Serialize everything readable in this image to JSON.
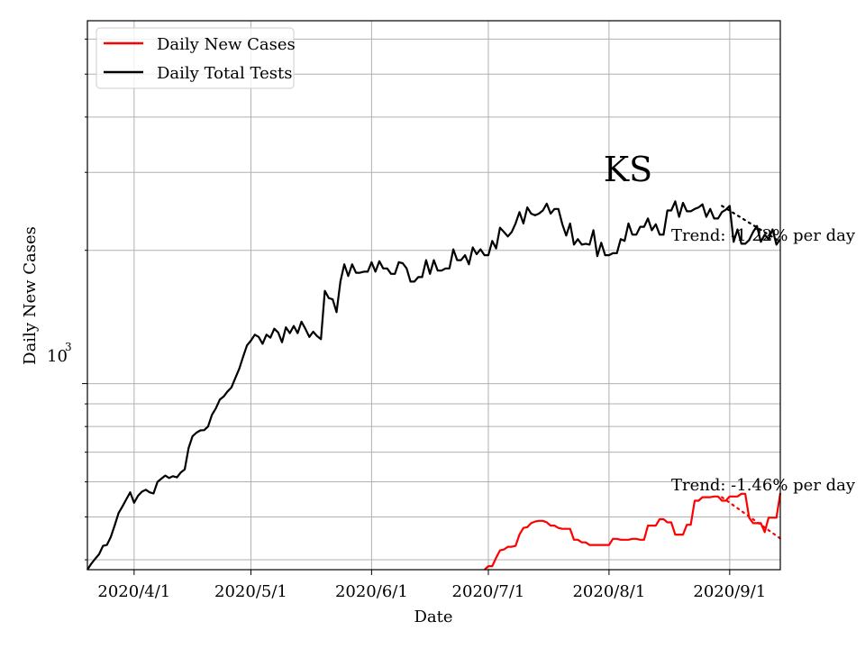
{
  "chart_data": {
    "type": "line",
    "state_label": "KS",
    "xlabel": "Date",
    "ylabel": "Daily New Cases",
    "y_scale": "log",
    "y_tick_labels": [
      {
        "value": 1000,
        "base": "10",
        "exp": "3"
      }
    ],
    "x_tick_labels": [
      "2020/4/1",
      "2020/5/1",
      "2020/6/1",
      "2020/7/1",
      "2020/8/1",
      "2020/9/1"
    ],
    "x_ticks": [
      "2020-04-01",
      "2020-05-01",
      "2020-06-01",
      "2020-07-01",
      "2020-08-01",
      "2020-09-01"
    ],
    "xlim": [
      "2020-03-20",
      "2020-09-14"
    ],
    "ylim": [
      380,
      6600
    ],
    "grid": true,
    "legend_position": "top-left",
    "legend": [
      "Daily New Cases",
      "Daily Total Tests"
    ],
    "colors": {
      "cases": "#ff0000",
      "tests": "#000000"
    },
    "annotations": [
      {
        "text": "Trend: -1.22% per day",
        "series": "Daily Total Tests"
      },
      {
        "text": "Trend: -1.46% per day",
        "series": "Daily New Cases"
      }
    ],
    "series": [
      {
        "name": "Daily Total Tests",
        "color": "#000000",
        "points": [
          [
            "2020-03-20",
            380
          ],
          [
            "2020-03-21",
            392
          ],
          [
            "2020-03-22",
            402
          ],
          [
            "2020-03-23",
            412
          ],
          [
            "2020-03-24",
            430
          ],
          [
            "2020-03-25",
            432
          ],
          [
            "2020-03-26",
            450
          ],
          [
            "2020-03-27",
            478
          ],
          [
            "2020-03-28",
            510
          ],
          [
            "2020-03-29",
            528
          ],
          [
            "2020-03-30",
            548
          ],
          [
            "2020-03-31",
            568
          ],
          [
            "2020-04-01",
            538
          ],
          [
            "2020-04-02",
            558
          ],
          [
            "2020-04-03",
            570
          ],
          [
            "2020-04-04",
            576
          ],
          [
            "2020-04-05",
            568
          ],
          [
            "2020-04-06",
            565
          ],
          [
            "2020-04-07",
            600
          ],
          [
            "2020-04-08",
            610
          ],
          [
            "2020-04-09",
            620
          ],
          [
            "2020-04-10",
            612
          ],
          [
            "2020-04-11",
            618
          ],
          [
            "2020-04-12",
            614
          ],
          [
            "2020-04-13",
            630
          ],
          [
            "2020-04-14",
            640
          ],
          [
            "2020-04-15",
            715
          ],
          [
            "2020-04-16",
            760
          ],
          [
            "2020-04-17",
            775
          ],
          [
            "2020-04-18",
            784
          ],
          [
            "2020-04-19",
            785
          ],
          [
            "2020-04-20",
            800
          ],
          [
            "2020-04-21",
            850
          ],
          [
            "2020-04-22",
            880
          ],
          [
            "2020-04-23",
            920
          ],
          [
            "2020-04-24",
            935
          ],
          [
            "2020-04-25",
            960
          ],
          [
            "2020-04-26",
            980
          ],
          [
            "2020-04-27",
            1030
          ],
          [
            "2020-04-28",
            1080
          ],
          [
            "2020-04-29",
            1150
          ],
          [
            "2020-04-30",
            1220
          ],
          [
            "2020-05-01",
            1250
          ],
          [
            "2020-05-02",
            1290
          ],
          [
            "2020-05-03",
            1275
          ],
          [
            "2020-05-04",
            1230
          ],
          [
            "2020-05-05",
            1290
          ],
          [
            "2020-05-06",
            1270
          ],
          [
            "2020-05-07",
            1330
          ],
          [
            "2020-05-08",
            1305
          ],
          [
            "2020-05-09",
            1240
          ],
          [
            "2020-05-10",
            1340
          ],
          [
            "2020-05-11",
            1300
          ],
          [
            "2020-05-12",
            1350
          ],
          [
            "2020-05-13",
            1300
          ],
          [
            "2020-05-14",
            1380
          ],
          [
            "2020-05-15",
            1330
          ],
          [
            "2020-05-16",
            1275
          ],
          [
            "2020-05-17",
            1310
          ],
          [
            "2020-05-18",
            1280
          ],
          [
            "2020-05-19",
            1260
          ],
          [
            "2020-05-20",
            1620
          ],
          [
            "2020-05-21",
            1560
          ],
          [
            "2020-05-22",
            1550
          ],
          [
            "2020-05-23",
            1450
          ],
          [
            "2020-05-24",
            1700
          ],
          [
            "2020-05-25",
            1860
          ],
          [
            "2020-05-26",
            1750
          ],
          [
            "2020-05-27",
            1860
          ],
          [
            "2020-05-28",
            1780
          ],
          [
            "2020-05-29",
            1780
          ],
          [
            "2020-05-30",
            1790
          ],
          [
            "2020-05-31",
            1790
          ],
          [
            "2020-06-01",
            1880
          ],
          [
            "2020-06-02",
            1790
          ],
          [
            "2020-06-03",
            1890
          ],
          [
            "2020-06-04",
            1820
          ],
          [
            "2020-06-05",
            1820
          ],
          [
            "2020-06-06",
            1770
          ],
          [
            "2020-06-07",
            1770
          ],
          [
            "2020-06-08",
            1880
          ],
          [
            "2020-06-09",
            1870
          ],
          [
            "2020-06-10",
            1820
          ],
          [
            "2020-06-11",
            1700
          ],
          [
            "2020-06-12",
            1700
          ],
          [
            "2020-06-13",
            1740
          ],
          [
            "2020-06-14",
            1740
          ],
          [
            "2020-06-15",
            1900
          ],
          [
            "2020-06-16",
            1770
          ],
          [
            "2020-06-17",
            1900
          ],
          [
            "2020-06-18",
            1800
          ],
          [
            "2020-06-19",
            1800
          ],
          [
            "2020-06-20",
            1820
          ],
          [
            "2020-06-21",
            1820
          ],
          [
            "2020-06-22",
            2010
          ],
          [
            "2020-06-23",
            1900
          ],
          [
            "2020-06-24",
            1900
          ],
          [
            "2020-06-25",
            1950
          ],
          [
            "2020-06-26",
            1860
          ],
          [
            "2020-06-27",
            2030
          ],
          [
            "2020-06-28",
            1960
          ],
          [
            "2020-06-29",
            2010
          ],
          [
            "2020-06-30",
            1950
          ],
          [
            "2020-07-01",
            1950
          ],
          [
            "2020-07-02",
            2100
          ],
          [
            "2020-07-03",
            2020
          ],
          [
            "2020-07-04",
            2250
          ],
          [
            "2020-07-05",
            2200
          ],
          [
            "2020-07-06",
            2150
          ],
          [
            "2020-07-07",
            2200
          ],
          [
            "2020-07-08",
            2300
          ],
          [
            "2020-07-09",
            2440
          ],
          [
            "2020-07-10",
            2300
          ],
          [
            "2020-07-11",
            2500
          ],
          [
            "2020-07-12",
            2420
          ],
          [
            "2020-07-13",
            2400
          ],
          [
            "2020-07-14",
            2420
          ],
          [
            "2020-07-15",
            2460
          ],
          [
            "2020-07-16",
            2550
          ],
          [
            "2020-07-17",
            2420
          ],
          [
            "2020-07-18",
            2480
          ],
          [
            "2020-07-19",
            2480
          ],
          [
            "2020-07-20",
            2290
          ],
          [
            "2020-07-21",
            2160
          ],
          [
            "2020-07-22",
            2300
          ],
          [
            "2020-07-23",
            2060
          ],
          [
            "2020-07-24",
            2120
          ],
          [
            "2020-07-25",
            2060
          ],
          [
            "2020-07-26",
            2070
          ],
          [
            "2020-07-27",
            2060
          ],
          [
            "2020-07-28",
            2220
          ],
          [
            "2020-07-29",
            1940
          ],
          [
            "2020-07-30",
            2080
          ],
          [
            "2020-07-31",
            1950
          ],
          [
            "2020-08-01",
            1950
          ],
          [
            "2020-08-02",
            1970
          ],
          [
            "2020-08-03",
            1970
          ],
          [
            "2020-08-04",
            2120
          ],
          [
            "2020-08-05",
            2100
          ],
          [
            "2020-08-06",
            2300
          ],
          [
            "2020-08-07",
            2170
          ],
          [
            "2020-08-08",
            2170
          ],
          [
            "2020-08-09",
            2260
          ],
          [
            "2020-08-10",
            2260
          ],
          [
            "2020-08-11",
            2360
          ],
          [
            "2020-08-12",
            2220
          ],
          [
            "2020-08-13",
            2290
          ],
          [
            "2020-08-14",
            2170
          ],
          [
            "2020-08-15",
            2170
          ],
          [
            "2020-08-16",
            2460
          ],
          [
            "2020-08-17",
            2460
          ],
          [
            "2020-08-18",
            2580
          ],
          [
            "2020-08-19",
            2380
          ],
          [
            "2020-08-20",
            2560
          ],
          [
            "2020-08-21",
            2450
          ],
          [
            "2020-08-22",
            2450
          ],
          [
            "2020-08-23",
            2480
          ],
          [
            "2020-08-24",
            2500
          ],
          [
            "2020-08-25",
            2540
          ],
          [
            "2020-08-26",
            2380
          ],
          [
            "2020-08-27",
            2480
          ],
          [
            "2020-08-28",
            2360
          ],
          [
            "2020-08-29",
            2360
          ],
          [
            "2020-08-30",
            2440
          ],
          [
            "2020-08-31",
            2470
          ],
          [
            "2020-09-01",
            2520
          ],
          [
            "2020-09-02",
            2090
          ],
          [
            "2020-09-03",
            2230
          ],
          [
            "2020-09-04",
            2070
          ],
          [
            "2020-09-05",
            2070
          ],
          [
            "2020-09-06",
            2110
          ],
          [
            "2020-09-07",
            2200
          ],
          [
            "2020-09-08",
            2270
          ],
          [
            "2020-09-09",
            2090
          ],
          [
            "2020-09-10",
            2170
          ],
          [
            "2020-09-11",
            2120
          ],
          [
            "2020-09-12",
            2230
          ],
          [
            "2020-09-13",
            2060
          ],
          [
            "2020-09-14",
            2120
          ]
        ]
      },
      {
        "name": "Daily New Cases",
        "color": "#ff0000",
        "points": [
          [
            "2020-06-30",
            380
          ],
          [
            "2020-07-01",
            387
          ],
          [
            "2020-07-02",
            387
          ],
          [
            "2020-07-03",
            404
          ],
          [
            "2020-07-04",
            420
          ],
          [
            "2020-07-05",
            422
          ],
          [
            "2020-07-06",
            428
          ],
          [
            "2020-07-07",
            428
          ],
          [
            "2020-07-08",
            430
          ],
          [
            "2020-07-09",
            456
          ],
          [
            "2020-07-10",
            472
          ],
          [
            "2020-07-11",
            474
          ],
          [
            "2020-07-12",
            484
          ],
          [
            "2020-07-13",
            488
          ],
          [
            "2020-07-14",
            490
          ],
          [
            "2020-07-15",
            490
          ],
          [
            "2020-07-16",
            486
          ],
          [
            "2020-07-17",
            478
          ],
          [
            "2020-07-18",
            478
          ],
          [
            "2020-07-19",
            472
          ],
          [
            "2020-07-20",
            470
          ],
          [
            "2020-07-21",
            470
          ],
          [
            "2020-07-22",
            470
          ],
          [
            "2020-07-23",
            444
          ],
          [
            "2020-07-24",
            444
          ],
          [
            "2020-07-25",
            438
          ],
          [
            "2020-07-26",
            438
          ],
          [
            "2020-07-27",
            432
          ],
          [
            "2020-07-28",
            432
          ],
          [
            "2020-07-29",
            432
          ],
          [
            "2020-07-30",
            432
          ],
          [
            "2020-07-31",
            432
          ],
          [
            "2020-08-01",
            432
          ],
          [
            "2020-08-02",
            446
          ],
          [
            "2020-08-03",
            446
          ],
          [
            "2020-08-04",
            444
          ],
          [
            "2020-08-05",
            444
          ],
          [
            "2020-08-06",
            444
          ],
          [
            "2020-08-07",
            446
          ],
          [
            "2020-08-08",
            446
          ],
          [
            "2020-08-09",
            444
          ],
          [
            "2020-08-10",
            444
          ],
          [
            "2020-08-11",
            478
          ],
          [
            "2020-08-12",
            478
          ],
          [
            "2020-08-13",
            478
          ],
          [
            "2020-08-14",
            494
          ],
          [
            "2020-08-15",
            494
          ],
          [
            "2020-08-16",
            486
          ],
          [
            "2020-08-17",
            486
          ],
          [
            "2020-08-18",
            456
          ],
          [
            "2020-08-19",
            456
          ],
          [
            "2020-08-20",
            456
          ],
          [
            "2020-08-21",
            480
          ],
          [
            "2020-08-22",
            480
          ],
          [
            "2020-08-23",
            544
          ],
          [
            "2020-08-24",
            544
          ],
          [
            "2020-08-25",
            554
          ],
          [
            "2020-08-26",
            554
          ],
          [
            "2020-08-27",
            554
          ],
          [
            "2020-08-28",
            556
          ],
          [
            "2020-08-29",
            556
          ],
          [
            "2020-08-30",
            544
          ],
          [
            "2020-08-31",
            544
          ],
          [
            "2020-09-01",
            556
          ],
          [
            "2020-09-02",
            556
          ],
          [
            "2020-09-03",
            556
          ],
          [
            "2020-09-04",
            564
          ],
          [
            "2020-09-05",
            564
          ],
          [
            "2020-09-06",
            498
          ],
          [
            "2020-09-07",
            484
          ],
          [
            "2020-09-08",
            484
          ],
          [
            "2020-09-09",
            484
          ],
          [
            "2020-09-10",
            462
          ],
          [
            "2020-09-11",
            498
          ],
          [
            "2020-09-12",
            498
          ],
          [
            "2020-09-13",
            498
          ],
          [
            "2020-09-14",
            566
          ]
        ]
      }
    ],
    "trend_lines": [
      {
        "series": "Daily Total Tests",
        "points": [
          [
            "2020-08-30",
            2520
          ],
          [
            "2020-09-14",
            2090
          ]
        ]
      },
      {
        "series": "Daily New Cases",
        "points": [
          [
            "2020-08-30",
            554
          ],
          [
            "2020-09-14",
            447
          ]
        ]
      }
    ]
  }
}
